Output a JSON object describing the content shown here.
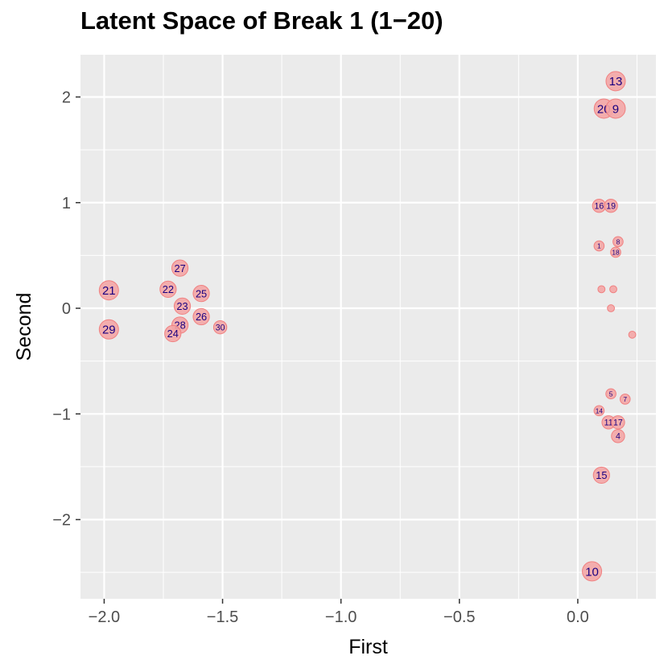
{
  "chart_data": {
    "type": "scatter",
    "title": "Latent Space of Break 1 (1−20)",
    "xlabel": "First",
    "ylabel": "Second",
    "xlim": [
      -2.1,
      0.33
    ],
    "ylim": [
      -2.75,
      2.4
    ],
    "x_ticks": [
      -2.0,
      -1.5,
      -1.0,
      -0.5,
      0.0
    ],
    "x_tick_labels": [
      "−2.0",
      "−1.5",
      "−1.0",
      "−0.5",
      "0.0"
    ],
    "y_ticks": [
      -2,
      -1,
      0,
      1,
      2
    ],
    "y_tick_labels": [
      "−2",
      "−1",
      "0",
      "1",
      "2"
    ],
    "grid": true,
    "point_color": "#f4a6a6",
    "point_outline": "#f08080",
    "label_color": "#1a0080",
    "panel_background": "#ebebeb",
    "grid_color": "#ffffff",
    "points": [
      {
        "label": "13",
        "x": 0.16,
        "y": 2.15,
        "size": 5
      },
      {
        "label": "20",
        "x": 0.11,
        "y": 1.89,
        "size": 5
      },
      {
        "label": "9",
        "x": 0.16,
        "y": 1.89,
        "size": 5
      },
      {
        "label": "16",
        "x": 0.09,
        "y": 0.97,
        "size": 3
      },
      {
        "label": "19",
        "x": 0.14,
        "y": 0.97,
        "size": 3
      },
      {
        "label": "8",
        "x": 0.17,
        "y": 0.63,
        "size": 2
      },
      {
        "label": "1",
        "x": 0.09,
        "y": 0.59,
        "size": 2
      },
      {
        "label": "18",
        "x": 0.16,
        "y": 0.53,
        "size": 2
      },
      {
        "label": "",
        "x": 0.1,
        "y": 0.18,
        "size": 1
      },
      {
        "label": "",
        "x": 0.15,
        "y": 0.18,
        "size": 1
      },
      {
        "label": "",
        "x": 0.14,
        "y": 0.0,
        "size": 1
      },
      {
        "label": "",
        "x": 0.23,
        "y": -0.25,
        "size": 1
      },
      {
        "label": "5",
        "x": 0.14,
        "y": -0.81,
        "size": 2
      },
      {
        "label": "7",
        "x": 0.2,
        "y": -0.86,
        "size": 2
      },
      {
        "label": "14",
        "x": 0.09,
        "y": -0.97,
        "size": 2
      },
      {
        "label": "11",
        "x": 0.13,
        "y": -1.08,
        "size": 3
      },
      {
        "label": "17",
        "x": 0.17,
        "y": -1.08,
        "size": 3
      },
      {
        "label": "4",
        "x": 0.17,
        "y": -1.21,
        "size": 3
      },
      {
        "label": "15",
        "x": 0.1,
        "y": -1.58,
        "size": 4
      },
      {
        "label": "10",
        "x": 0.06,
        "y": -2.49,
        "size": 5
      },
      {
        "label": "27",
        "x": -1.68,
        "y": 0.38,
        "size": 4
      },
      {
        "label": "21",
        "x": -1.98,
        "y": 0.17,
        "size": 5
      },
      {
        "label": "22",
        "x": -1.73,
        "y": 0.18,
        "size": 4
      },
      {
        "label": "25",
        "x": -1.59,
        "y": 0.14,
        "size": 4
      },
      {
        "label": "23",
        "x": -1.67,
        "y": 0.02,
        "size": 4
      },
      {
        "label": "26",
        "x": -1.59,
        "y": -0.08,
        "size": 4
      },
      {
        "label": "29",
        "x": -1.98,
        "y": -0.2,
        "size": 5
      },
      {
        "label": "28",
        "x": -1.68,
        "y": -0.16,
        "size": 4
      },
      {
        "label": "24",
        "x": -1.71,
        "y": -0.24,
        "size": 4
      },
      {
        "label": "30",
        "x": -1.51,
        "y": -0.18,
        "size": 3
      }
    ]
  }
}
